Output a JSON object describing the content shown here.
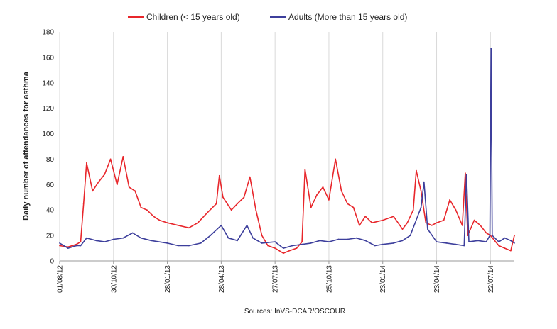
{
  "chart_data": {
    "type": "line",
    "title": "",
    "xlabel": "",
    "ylabel": "Daily number of attendances for asthma",
    "source": "Sources: InVS-DCAR/OSCOUR",
    "ylim": [
      0,
      180
    ],
    "yticks": [
      0,
      20,
      40,
      60,
      80,
      100,
      120,
      140,
      160,
      180
    ],
    "xlim": [
      "2012-08-01",
      "2014-08-31"
    ],
    "xticks": [
      {
        "date": "2012-08-01",
        "label": "01/08/12"
      },
      {
        "date": "2012-10-30",
        "label": "30/10/12"
      },
      {
        "date": "2013-01-28",
        "label": "28/01/13"
      },
      {
        "date": "2013-04-28",
        "label": "28/04/13"
      },
      {
        "date": "2013-07-27",
        "label": "27/07/13"
      },
      {
        "date": "2013-10-25",
        "label": "25/10/13"
      },
      {
        "date": "2014-01-23",
        "label": "23/01/14"
      },
      {
        "date": "2014-04-23",
        "label": "23/04/14"
      },
      {
        "date": "2014-07-22",
        "label": "22/07/14"
      }
    ],
    "grid": "vertical",
    "legend_position": "top",
    "series": [
      {
        "name": "Children (< 15 years old)",
        "color": "#e8262b",
        "points": [
          [
            "2012-08-01",
            12
          ],
          [
            "2012-08-15",
            11
          ],
          [
            "2012-08-29",
            13
          ],
          [
            "2012-09-05",
            15
          ],
          [
            "2012-09-10",
            45
          ],
          [
            "2012-09-15",
            77
          ],
          [
            "2012-09-25",
            55
          ],
          [
            "2012-10-05",
            62
          ],
          [
            "2012-10-15",
            68
          ],
          [
            "2012-10-25",
            80
          ],
          [
            "2012-11-05",
            60
          ],
          [
            "2012-11-15",
            82
          ],
          [
            "2012-11-25",
            58
          ],
          [
            "2012-12-05",
            55
          ],
          [
            "2012-12-15",
            42
          ],
          [
            "2012-12-25",
            40
          ],
          [
            "2013-01-05",
            35
          ],
          [
            "2013-01-15",
            32
          ],
          [
            "2013-01-28",
            30
          ],
          [
            "2013-02-15",
            28
          ],
          [
            "2013-03-05",
            26
          ],
          [
            "2013-03-20",
            30
          ],
          [
            "2013-04-05",
            38
          ],
          [
            "2013-04-20",
            45
          ],
          [
            "2013-04-25",
            67
          ],
          [
            "2013-05-01",
            50
          ],
          [
            "2013-05-15",
            40
          ],
          [
            "2013-05-25",
            45
          ],
          [
            "2013-06-05",
            50
          ],
          [
            "2013-06-15",
            66
          ],
          [
            "2013-06-25",
            40
          ],
          [
            "2013-07-05",
            20
          ],
          [
            "2013-07-15",
            12
          ],
          [
            "2013-07-27",
            10
          ],
          [
            "2013-08-10",
            6
          ],
          [
            "2013-08-20",
            8
          ],
          [
            "2013-09-01",
            10
          ],
          [
            "2013-09-10",
            15
          ],
          [
            "2013-09-15",
            72
          ],
          [
            "2013-09-25",
            42
          ],
          [
            "2013-10-05",
            52
          ],
          [
            "2013-10-15",
            58
          ],
          [
            "2013-10-25",
            48
          ],
          [
            "2013-11-05",
            80
          ],
          [
            "2013-11-15",
            55
          ],
          [
            "2013-11-25",
            45
          ],
          [
            "2013-12-05",
            42
          ],
          [
            "2013-12-15",
            28
          ],
          [
            "2013-12-25",
            35
          ],
          [
            "2014-01-05",
            30
          ],
          [
            "2014-01-23",
            32
          ],
          [
            "2014-02-10",
            35
          ],
          [
            "2014-02-25",
            25
          ],
          [
            "2014-03-05",
            30
          ],
          [
            "2014-03-15",
            40
          ],
          [
            "2014-03-20",
            71
          ],
          [
            "2014-03-28",
            55
          ],
          [
            "2014-04-05",
            30
          ],
          [
            "2014-04-15",
            28
          ],
          [
            "2014-04-23",
            30
          ],
          [
            "2014-05-05",
            32
          ],
          [
            "2014-05-15",
            48
          ],
          [
            "2014-05-25",
            40
          ],
          [
            "2014-06-05",
            28
          ],
          [
            "2014-06-10",
            69
          ],
          [
            "2014-06-14",
            20
          ],
          [
            "2014-06-25",
            32
          ],
          [
            "2014-07-05",
            28
          ],
          [
            "2014-07-15",
            22
          ],
          [
            "2014-07-22",
            20
          ],
          [
            "2014-08-05",
            12
          ],
          [
            "2014-08-15",
            10
          ],
          [
            "2014-08-25",
            8
          ],
          [
            "2014-08-31",
            20
          ]
        ]
      },
      {
        "name": "Adults (More than 15 years old)",
        "color": "#3d3f9c",
        "points": [
          [
            "2012-08-01",
            14
          ],
          [
            "2012-08-15",
            10
          ],
          [
            "2012-08-29",
            12
          ],
          [
            "2012-09-05",
            12
          ],
          [
            "2012-09-15",
            18
          ],
          [
            "2012-10-01",
            16
          ],
          [
            "2012-10-15",
            15
          ],
          [
            "2012-10-30",
            17
          ],
          [
            "2012-11-15",
            18
          ],
          [
            "2012-12-01",
            22
          ],
          [
            "2012-12-15",
            18
          ],
          [
            "2013-01-01",
            16
          ],
          [
            "2013-01-28",
            14
          ],
          [
            "2013-02-15",
            12
          ],
          [
            "2013-03-05",
            12
          ],
          [
            "2013-03-25",
            14
          ],
          [
            "2013-04-10",
            20
          ],
          [
            "2013-04-28",
            28
          ],
          [
            "2013-05-10",
            18
          ],
          [
            "2013-05-25",
            16
          ],
          [
            "2013-06-10",
            28
          ],
          [
            "2013-06-20",
            18
          ],
          [
            "2013-07-05",
            14
          ],
          [
            "2013-07-27",
            15
          ],
          [
            "2013-08-10",
            10
          ],
          [
            "2013-08-25",
            12
          ],
          [
            "2013-09-10",
            13
          ],
          [
            "2013-09-25",
            14
          ],
          [
            "2013-10-10",
            16
          ],
          [
            "2013-10-25",
            15
          ],
          [
            "2013-11-10",
            17
          ],
          [
            "2013-11-25",
            17
          ],
          [
            "2013-12-10",
            18
          ],
          [
            "2013-12-25",
            16
          ],
          [
            "2014-01-10",
            12
          ],
          [
            "2014-01-23",
            13
          ],
          [
            "2014-02-10",
            14
          ],
          [
            "2014-02-25",
            16
          ],
          [
            "2014-03-10",
            20
          ],
          [
            "2014-03-28",
            42
          ],
          [
            "2014-04-02",
            62
          ],
          [
            "2014-04-08",
            25
          ],
          [
            "2014-04-23",
            15
          ],
          [
            "2014-05-10",
            14
          ],
          [
            "2014-05-25",
            13
          ],
          [
            "2014-06-08",
            12
          ],
          [
            "2014-06-12",
            68
          ],
          [
            "2014-06-16",
            15
          ],
          [
            "2014-07-01",
            16
          ],
          [
            "2014-07-15",
            15
          ],
          [
            "2014-07-21",
            20
          ],
          [
            "2014-07-23",
            167
          ],
          [
            "2014-07-25",
            20
          ],
          [
            "2014-08-05",
            15
          ],
          [
            "2014-08-15",
            18
          ],
          [
            "2014-08-25",
            16
          ],
          [
            "2014-08-31",
            14
          ]
        ]
      }
    ]
  }
}
